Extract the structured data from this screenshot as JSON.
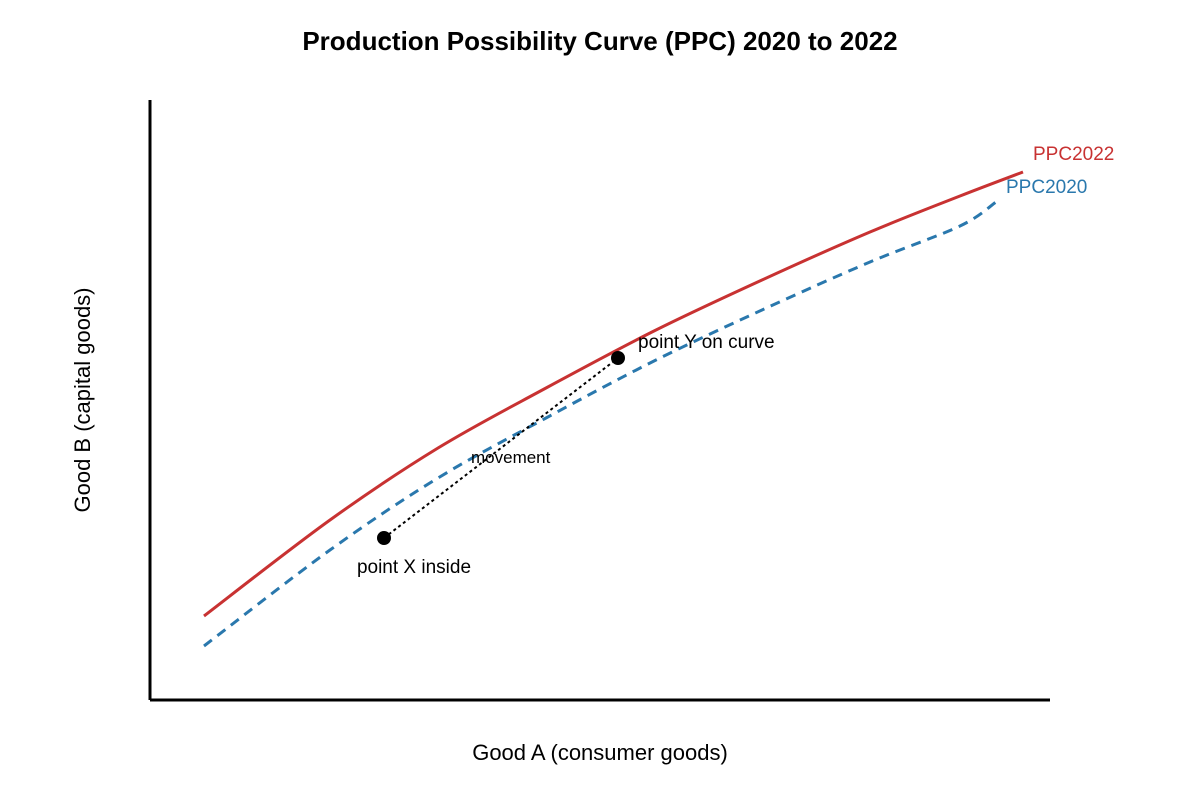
{
  "chart_data": {
    "type": "line",
    "title": "Production Possibility Curve (PPC) 2020 to 2022",
    "xlabel": "Good A (consumer goods)",
    "ylabel": "Good B (capital goods)",
    "grid": false,
    "legend": "none",
    "series": [
      {
        "name": "PPC2022",
        "color": "#c83232",
        "style": "solid",
        "points": [
          [
            0.06,
            0.14
          ],
          [
            0.2,
            0.3
          ],
          [
            0.32,
            0.42
          ],
          [
            0.44,
            0.52
          ],
          [
            0.56,
            0.615
          ],
          [
            0.68,
            0.7
          ],
          [
            0.8,
            0.78
          ],
          [
            0.9,
            0.84
          ],
          [
            0.97,
            0.88
          ]
        ]
      },
      {
        "name": "PPC2020",
        "color": "#2a78ad",
        "style": "dashed",
        "points": [
          [
            0.06,
            0.09
          ],
          [
            0.2,
            0.25
          ],
          [
            0.32,
            0.37
          ],
          [
            0.44,
            0.47
          ],
          [
            0.56,
            0.565
          ],
          [
            0.68,
            0.65
          ],
          [
            0.8,
            0.73
          ],
          [
            0.9,
            0.79
          ],
          [
            0.94,
            0.83
          ]
        ]
      }
    ],
    "annotations": {
      "points": [
        {
          "id": "x",
          "label": "point X inside",
          "x": 0.26,
          "y": 0.27
        },
        {
          "id": "y",
          "label": "point Y on curve",
          "x": 0.52,
          "y": 0.57
        }
      ],
      "movement_label": "movement"
    }
  }
}
